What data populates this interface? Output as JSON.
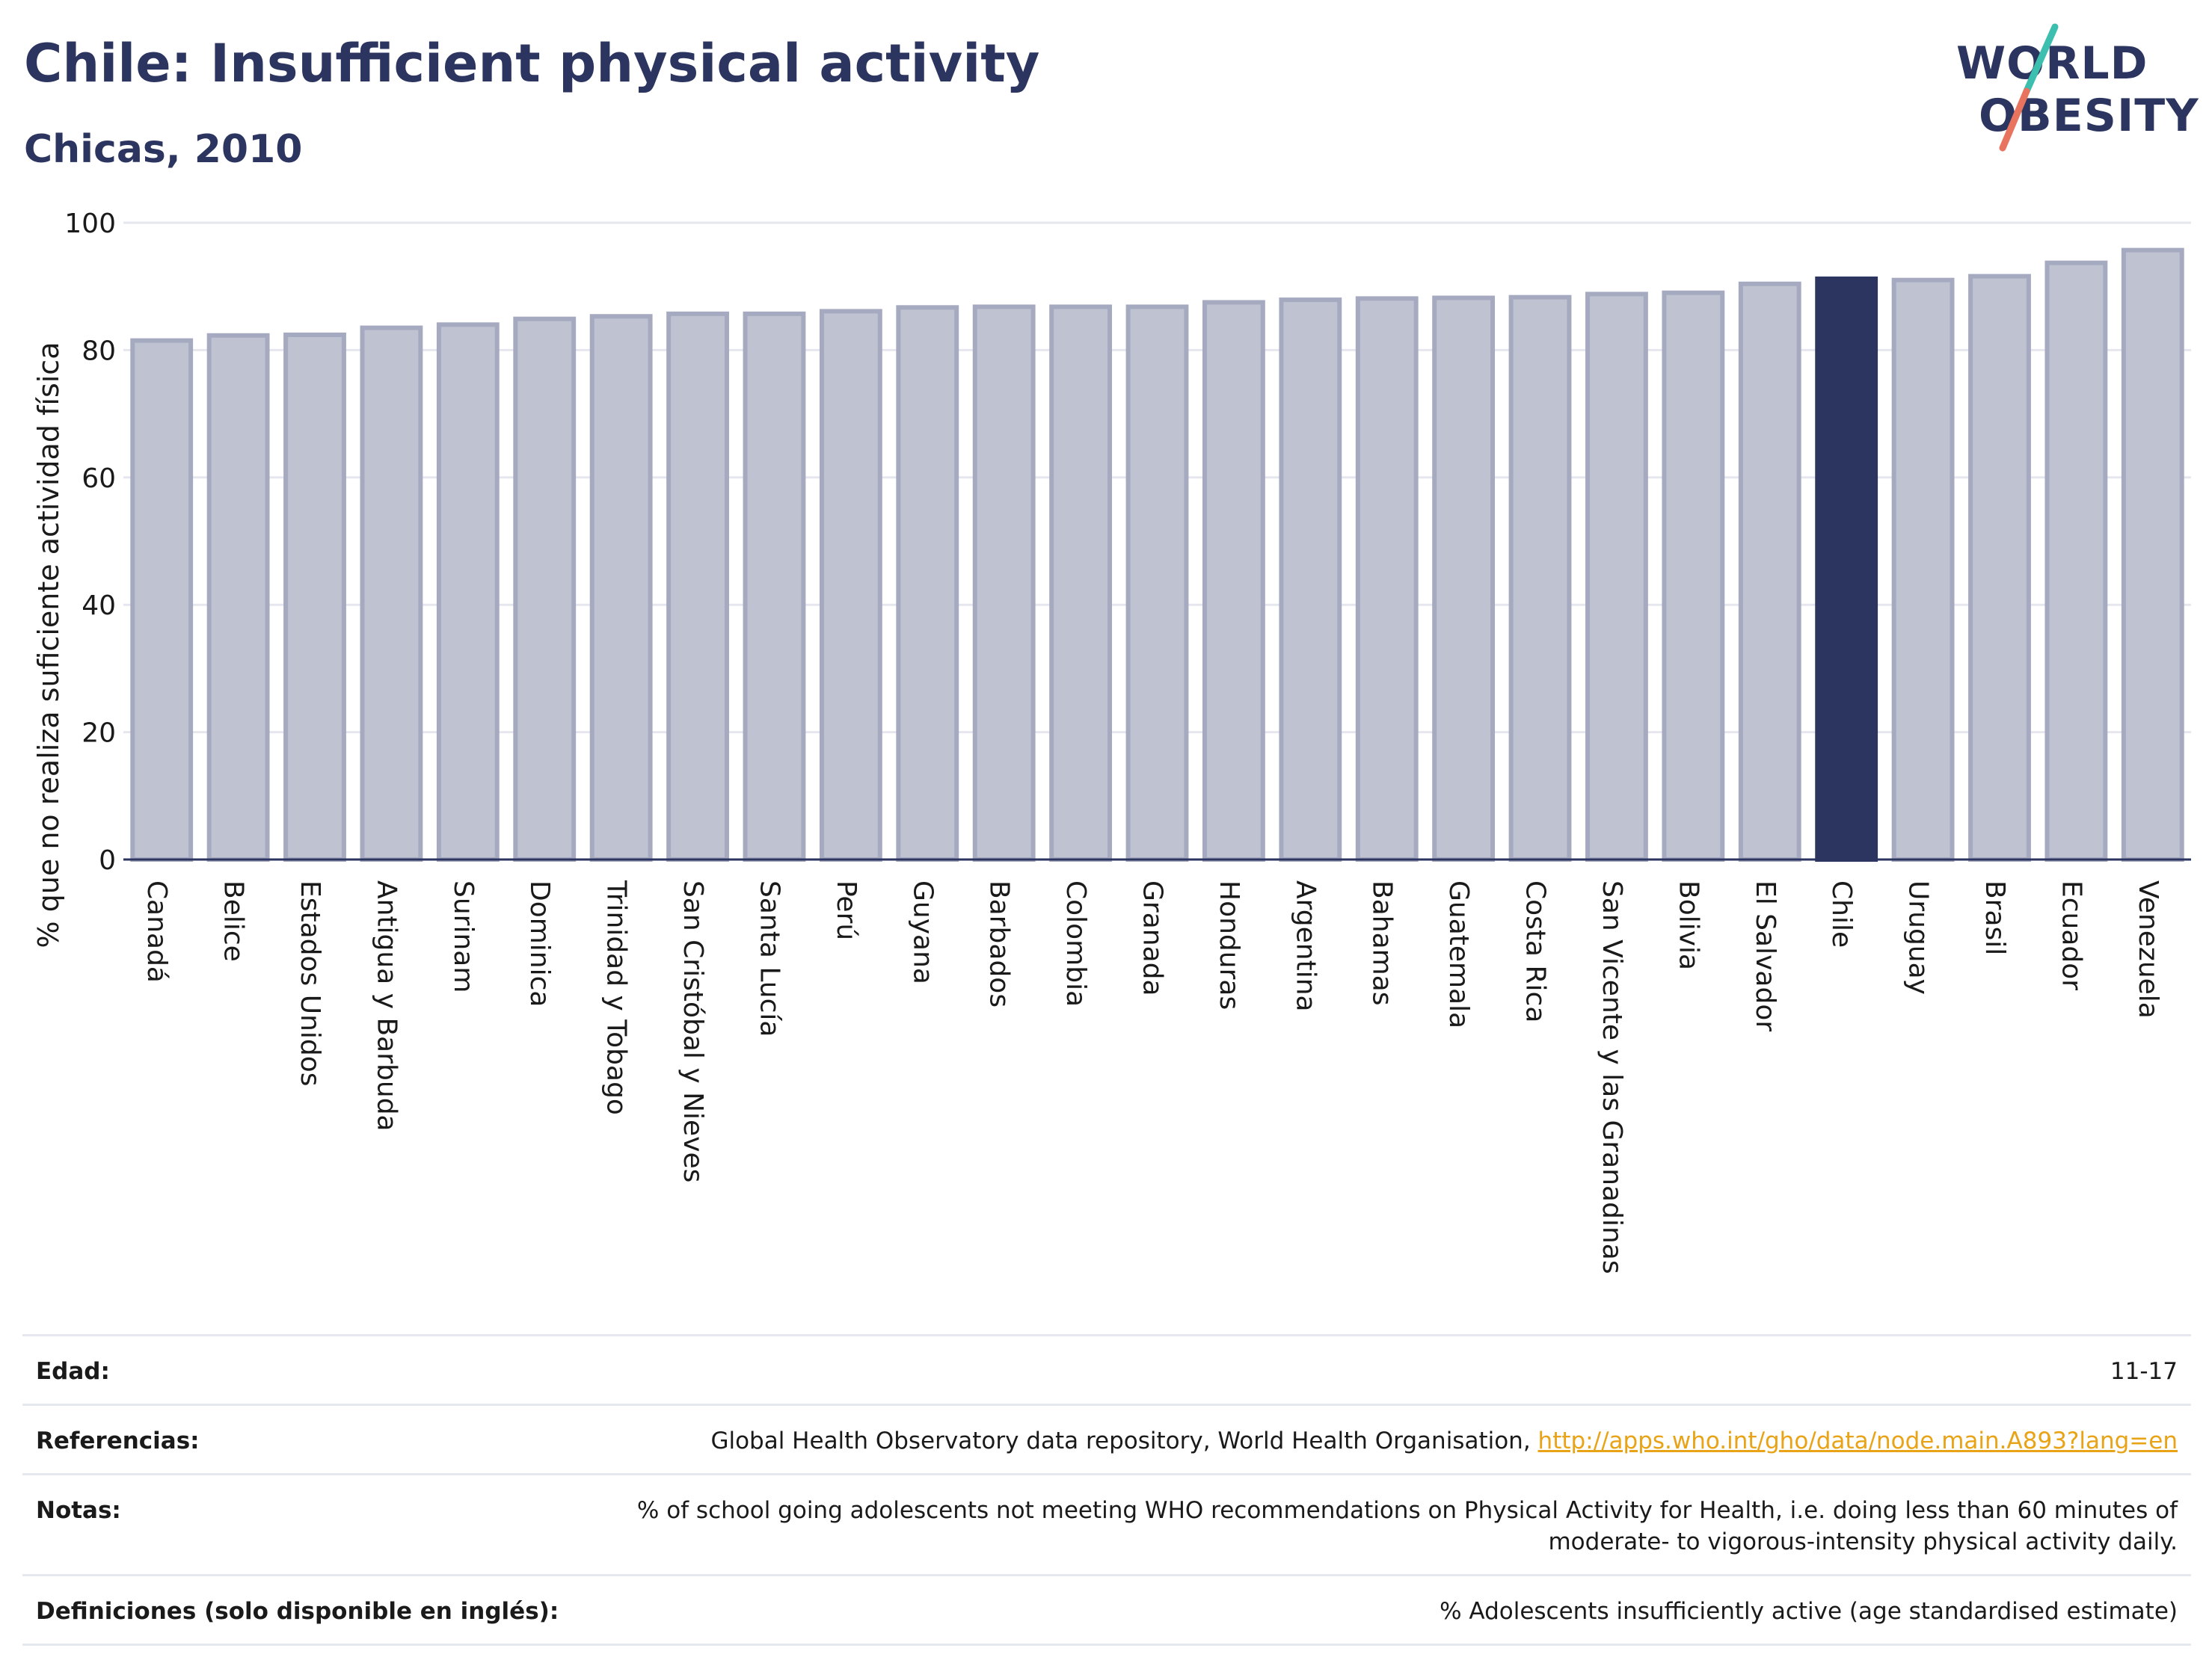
{
  "header": {
    "title": "Chile: Insufficient physical activity",
    "subtitle": "Chicas, 2010"
  },
  "logo": {
    "line1": "WORLD",
    "line2": "OBESITY"
  },
  "colors": {
    "bar_default": "#bfc2d0",
    "bar_border": "#a6aac0",
    "bar_highlight": "#2c3560",
    "title": "#2c3560",
    "link": "#e8a317",
    "logo_teal": "#3cbfae",
    "logo_coral": "#e8735f"
  },
  "chart_data": {
    "type": "bar",
    "ylabel": "% que no realiza suficiente actividad física",
    "ylim": [
      0,
      100
    ],
    "yticks": [
      0,
      20,
      40,
      60,
      80,
      100
    ],
    "grid": true,
    "highlight": "Chile",
    "categories": [
      "Canadá",
      "Belice",
      "Estados Unidos",
      "Antigua y Barbuda",
      "Surinam",
      "Dominica",
      "Trinidad y Tobago",
      "San Cristóbal y Nieves",
      "Santa Lucía",
      "Perú",
      "Guyana",
      "Barbados",
      "Colombia",
      "Granada",
      "Honduras",
      "Argentina",
      "Bahamas",
      "Guatemala",
      "Costa Rica",
      "San Vicente y las Granadinas",
      "Bolivia",
      "El Salvador",
      "Chile",
      "Uruguay",
      "Brasil",
      "Ecuador",
      "Venezuela"
    ],
    "values": [
      81.5,
      82.3,
      82.4,
      83.5,
      84.0,
      84.9,
      85.3,
      85.7,
      85.7,
      86.1,
      86.7,
      86.8,
      86.8,
      86.8,
      87.5,
      87.9,
      88.1,
      88.2,
      88.3,
      88.8,
      89.0,
      90.4,
      91.2,
      91.0,
      91.6,
      93.7,
      95.7
    ]
  },
  "info": {
    "rows": [
      {
        "label": "Edad:",
        "value": "11-17"
      },
      {
        "label": "Referencias:",
        "value": "Global Health Observatory data repository, World Health Organisation, ",
        "link": "http://apps.who.int/gho/data/node.main.A893?lang=en"
      },
      {
        "label": "Notas:",
        "value": "% of school going adolescents not meeting WHO recommendations on Physical Activity for Health, i.e. doing less than 60 minutes of moderate- to vigorous-intensity physical activity daily."
      },
      {
        "label": "Definiciones (solo disponible en inglés):",
        "value": "% Adolescents insufficiently active (age standardised estimate)"
      }
    ]
  }
}
